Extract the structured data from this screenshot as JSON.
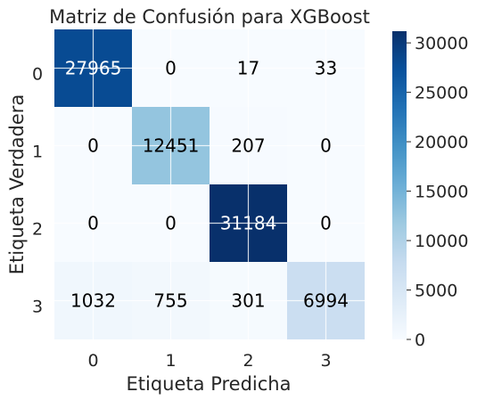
{
  "chart_data": {
    "type": "heatmap",
    "title": "Matriz de Confusión para XGBoost",
    "xlabel": "Etiqueta Predicha",
    "ylabel": "Etiqueta Verdadera",
    "x_categories": [
      "0",
      "1",
      "2",
      "3"
    ],
    "y_categories": [
      "0",
      "1",
      "2",
      "3"
    ],
    "matrix": [
      [
        27965,
        0,
        17,
        33
      ],
      [
        0,
        12451,
        207,
        0
      ],
      [
        0,
        0,
        31184,
        0
      ],
      [
        1032,
        755,
        301,
        6994
      ]
    ],
    "colormap": "Blues",
    "vmin": 0,
    "vmax": 31184,
    "colorbar_ticks": [
      "0",
      "5000",
      "10000",
      "15000",
      "20000",
      "25000",
      "30000"
    ],
    "colorbar_tick_values": [
      0,
      5000,
      10000,
      15000,
      20000,
      25000,
      30000
    ],
    "grid": true
  }
}
